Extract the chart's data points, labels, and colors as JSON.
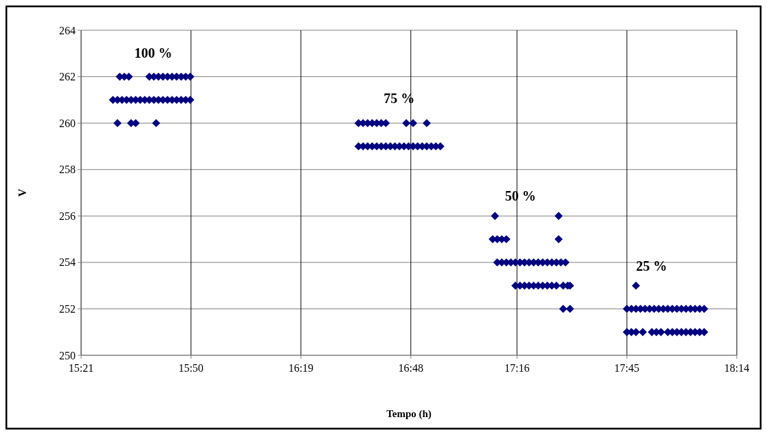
{
  "chart_data": {
    "type": "scatter",
    "xlabel": "Tempo (h)",
    "ylabel": "V",
    "xlim": [
      15.35,
      18.2333
    ],
    "xticks": [
      {
        "value": 15.35,
        "label": "15:21"
      },
      {
        "value": 15.8333,
        "label": "15:50"
      },
      {
        "value": 16.3167,
        "label": "16:19"
      },
      {
        "value": 16.8,
        "label": "16:48"
      },
      {
        "value": 17.2667,
        "label": "17:16"
      },
      {
        "value": 17.75,
        "label": "17:45"
      },
      {
        "value": 18.2333,
        "label": "18:14"
      }
    ],
    "ylim": [
      250,
      264
    ],
    "yticks": [
      250,
      252,
      254,
      256,
      258,
      260,
      262,
      264
    ],
    "grid": true,
    "marker": "diamond",
    "annotations": [
      "100 %",
      "75 %",
      "50 %",
      "25 %"
    ],
    "series": [
      {
        "color": "#000080",
        "x": [
          15.49,
          15.51,
          15.53,
          15.55,
          15.57,
          15.59,
          15.61,
          15.63,
          15.65,
          15.67,
          15.69,
          15.71,
          15.73,
          15.75,
          15.77,
          15.79,
          15.81,
          15.83
        ],
        "values": [
          261,
          261,
          261,
          261,
          261,
          261,
          261,
          261,
          261,
          261,
          261,
          261,
          261,
          261,
          261,
          261,
          261,
          261
        ]
      },
      {
        "color": "#000080",
        "x": [
          15.52,
          15.54,
          15.56,
          15.65,
          15.67,
          15.69,
          15.71,
          15.73,
          15.75,
          15.77,
          15.79,
          15.81,
          15.83
        ],
        "values": [
          262,
          262,
          262,
          262,
          262,
          262,
          262,
          262,
          262,
          262,
          262,
          262,
          262
        ]
      },
      {
        "color": "#000080",
        "x": [
          15.51,
          15.57,
          15.59,
          15.68
        ],
        "values": [
          260,
          260,
          260,
          260
        ]
      },
      {
        "color": "#000080",
        "x": [
          16.57,
          16.59,
          16.61,
          16.63,
          16.65,
          16.67,
          16.69,
          16.71,
          16.73,
          16.75,
          16.77,
          16.79,
          16.81,
          16.83,
          16.85,
          16.87,
          16.89,
          16.91,
          16.93
        ],
        "values": [
          259,
          259,
          259,
          259,
          259,
          259,
          259,
          259,
          259,
          259,
          259,
          259,
          259,
          259,
          259,
          259,
          259,
          259,
          259
        ]
      },
      {
        "color": "#000080",
        "x": [
          16.57,
          16.59,
          16.61,
          16.63,
          16.65,
          16.67,
          16.69,
          16.78,
          16.81,
          16.87
        ],
        "values": [
          260,
          260,
          260,
          260,
          260,
          260,
          260,
          260,
          260,
          260
        ]
      },
      {
        "color": "#000080",
        "x": [
          17.17,
          17.45
        ],
        "values": [
          256,
          256
        ]
      },
      {
        "color": "#000080",
        "x": [
          17.16,
          17.18,
          17.2,
          17.22,
          17.45
        ],
        "values": [
          255,
          255,
          255,
          255,
          255
        ]
      },
      {
        "color": "#000080",
        "x": [
          17.18,
          17.2,
          17.22,
          17.24,
          17.26,
          17.28,
          17.3,
          17.32,
          17.34,
          17.36,
          17.38,
          17.4,
          17.42,
          17.44,
          17.46,
          17.48
        ],
        "values": [
          254,
          254,
          254,
          254,
          254,
          254,
          254,
          254,
          254,
          254,
          254,
          254,
          254,
          254,
          254,
          254
        ]
      },
      {
        "color": "#000080",
        "x": [
          17.26,
          17.28,
          17.3,
          17.32,
          17.34,
          17.36,
          17.38,
          17.4,
          17.42,
          17.44,
          17.47,
          17.49,
          17.5
        ],
        "values": [
          253,
          253,
          253,
          253,
          253,
          253,
          253,
          253,
          253,
          253,
          253,
          253,
          253
        ]
      },
      {
        "color": "#000080",
        "x": [
          17.47,
          17.5
        ],
        "values": [
          252,
          252
        ]
      },
      {
        "color": "#000080",
        "x": [
          17.79
        ],
        "values": [
          253
        ]
      },
      {
        "color": "#000080",
        "x": [
          17.75,
          17.77,
          17.79,
          17.81,
          17.83,
          17.85,
          17.87,
          17.89,
          17.91,
          17.93,
          17.95,
          17.97,
          17.99,
          18.01,
          18.03,
          18.05,
          18.07,
          18.09
        ],
        "values": [
          252,
          252,
          252,
          252,
          252,
          252,
          252,
          252,
          252,
          252,
          252,
          252,
          252,
          252,
          252,
          252,
          252,
          252
        ]
      },
      {
        "color": "#000080",
        "x": [
          17.75,
          17.77,
          17.79,
          17.82,
          17.86,
          17.88,
          17.9,
          17.93,
          17.95,
          17.97,
          17.99,
          18.01,
          18.03,
          18.05,
          18.07,
          18.09
        ],
        "values": [
          251,
          251,
          251,
          251,
          251,
          251,
          251,
          251,
          251,
          251,
          251,
          251,
          251,
          251,
          251,
          251
        ]
      }
    ]
  }
}
